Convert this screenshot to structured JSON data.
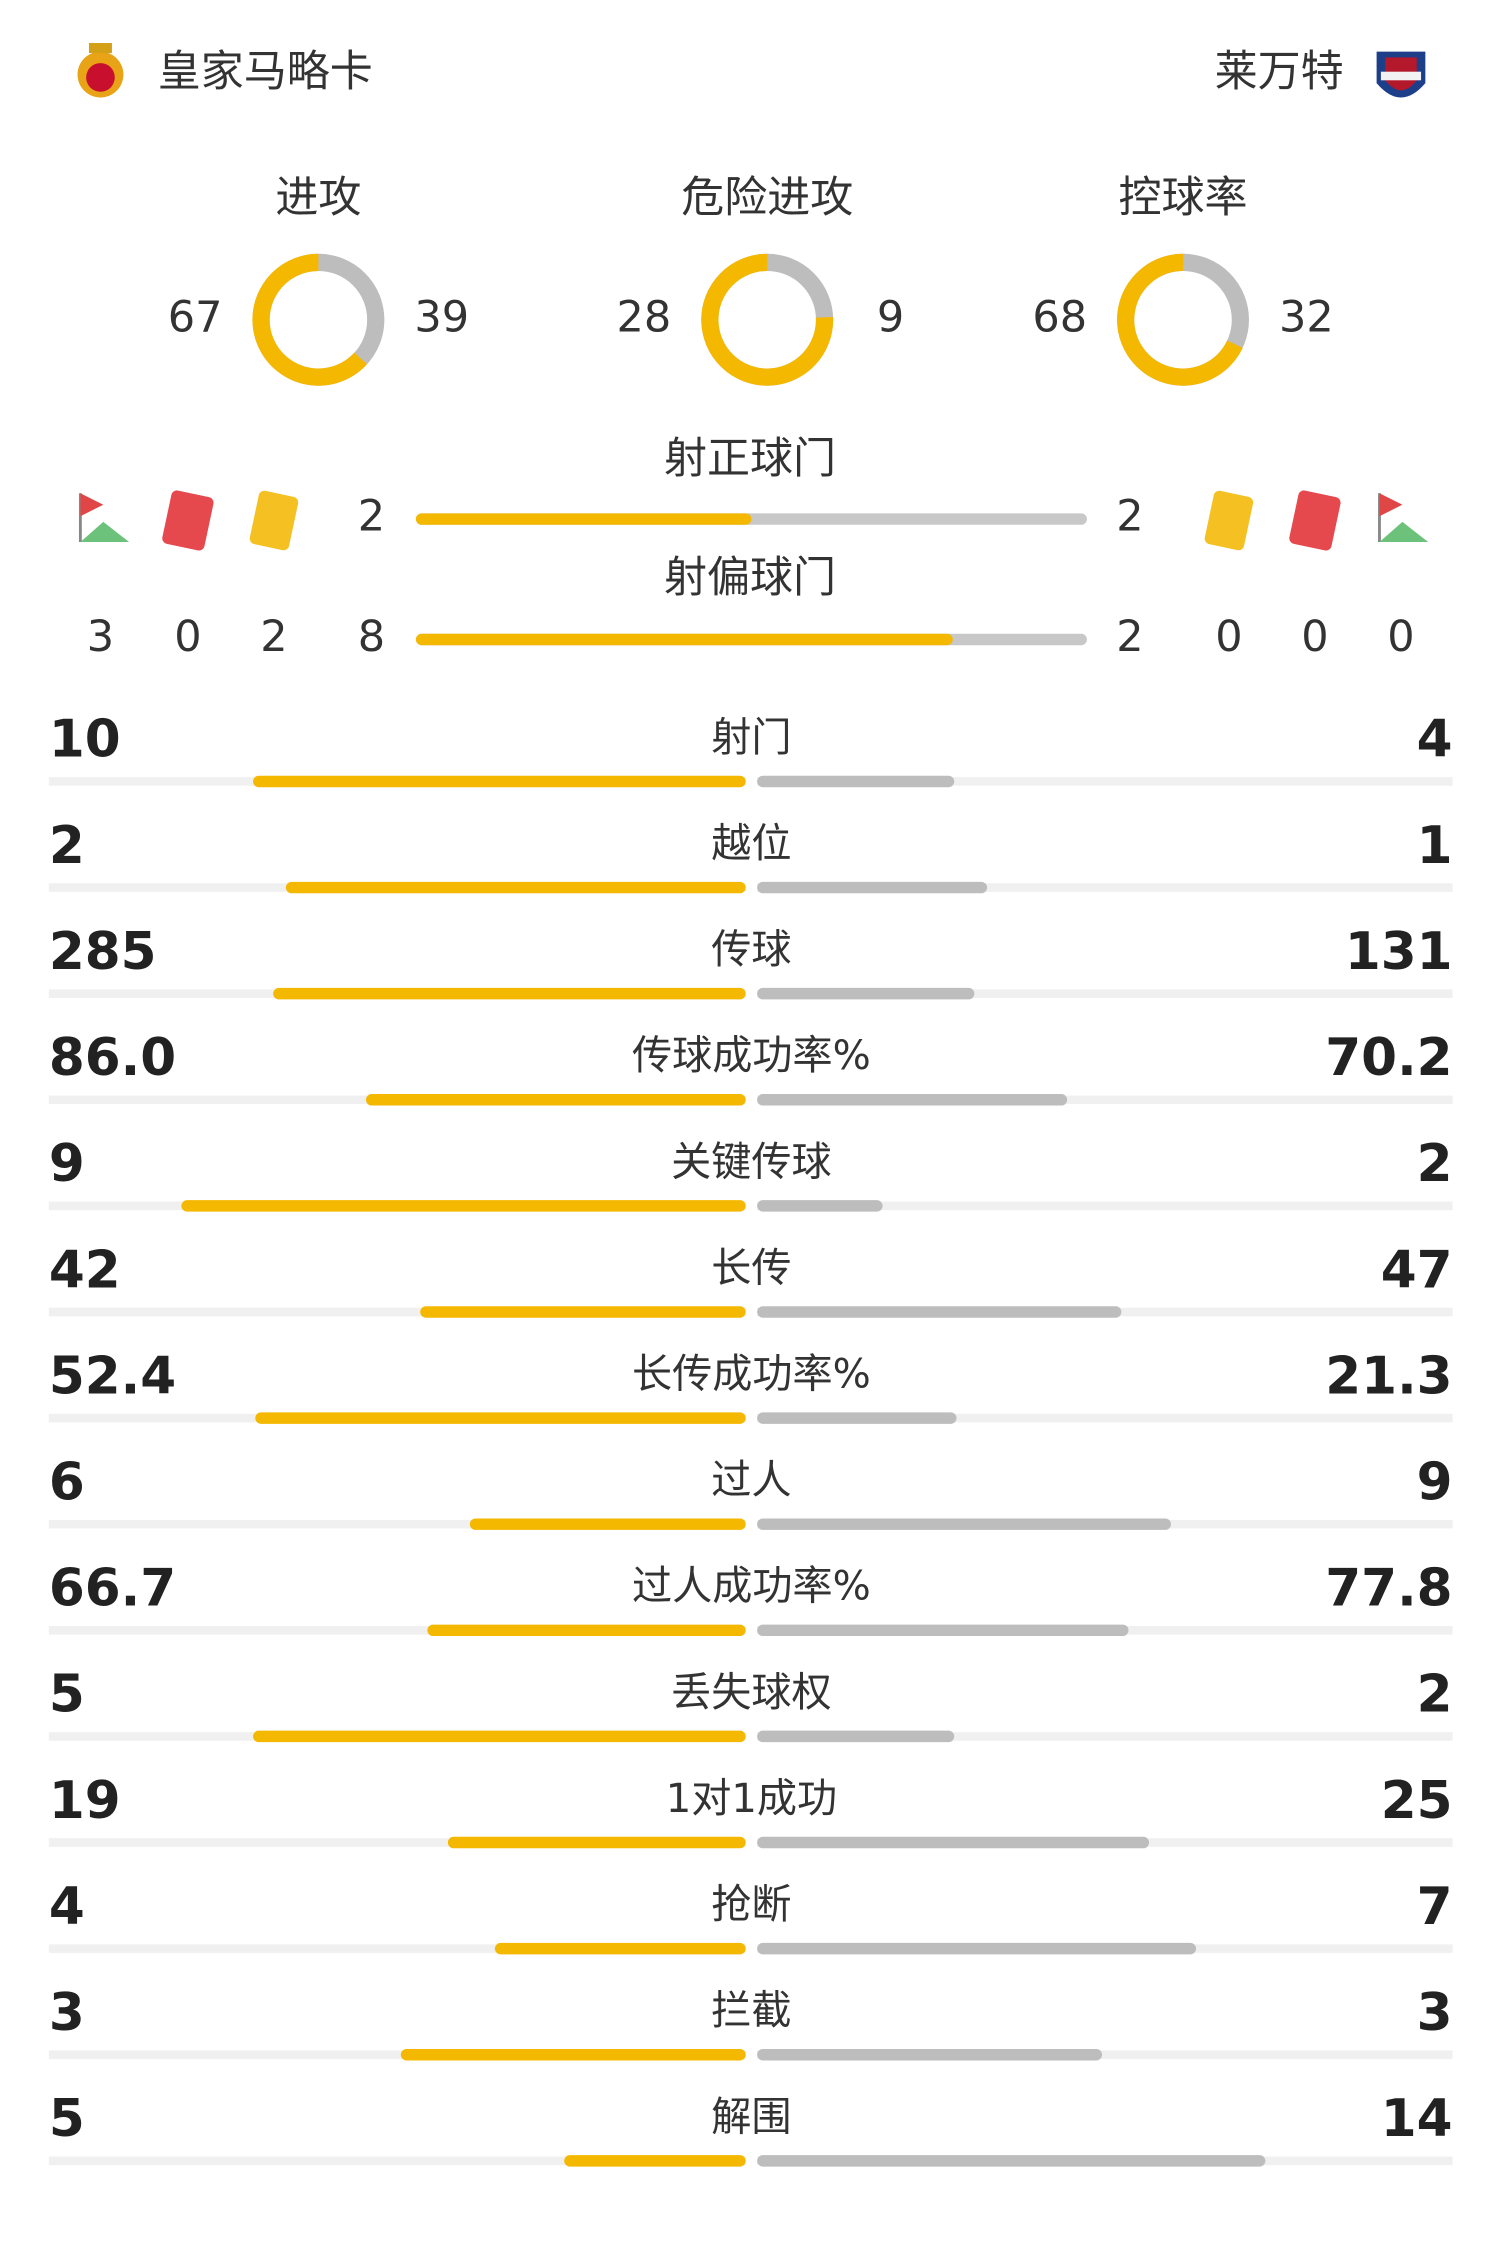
{
  "home": {
    "name": "皇家马略卡"
  },
  "away": {
    "name": "莱万特"
  },
  "rings": [
    {
      "label": "进攻",
      "home": 67,
      "away": 39
    },
    {
      "label": "危险进攻",
      "home": 28,
      "away": 9
    },
    {
      "label": "控球率",
      "home": 68,
      "away": 32
    }
  ],
  "shots_on_target": {
    "label": "射正球门",
    "home": 2,
    "away": 2
  },
  "shots_off_target": {
    "label": "射偏球门",
    "home": 8,
    "away": 2
  },
  "home_events": {
    "corners": 3,
    "red_cards": 0,
    "yellow_cards": 2
  },
  "away_events": {
    "yellow_cards": 0,
    "red_cards": 0,
    "corners": 0
  },
  "stats": [
    {
      "label": "射门",
      "home": 10,
      "away": 4
    },
    {
      "label": "越位",
      "home": 2,
      "away": 1
    },
    {
      "label": "传球",
      "home": 285,
      "away": 131
    },
    {
      "label": "传球成功率%",
      "home": 86,
      "home_label": "86.0",
      "away": 70.2
    },
    {
      "label": "关键传球",
      "home": 9,
      "away": 2
    },
    {
      "label": "长传",
      "home": 42,
      "away": 47
    },
    {
      "label": "长传成功率%",
      "home": 52.4,
      "away": 21.3
    },
    {
      "label": "过人",
      "home": 6,
      "away": 9
    },
    {
      "label": "过人成功率%",
      "home": 66.7,
      "away": 77.8
    },
    {
      "label": "丢失球权",
      "home": 5,
      "away": 2
    },
    {
      "label": "1对1成功",
      "home": 19,
      "away": 25
    },
    {
      "label": "抢断",
      "home": 4,
      "away": 7
    },
    {
      "label": "拦截",
      "home": 3,
      "away": 3
    },
    {
      "label": "解围",
      "home": 5,
      "away": 14
    }
  ]
}
